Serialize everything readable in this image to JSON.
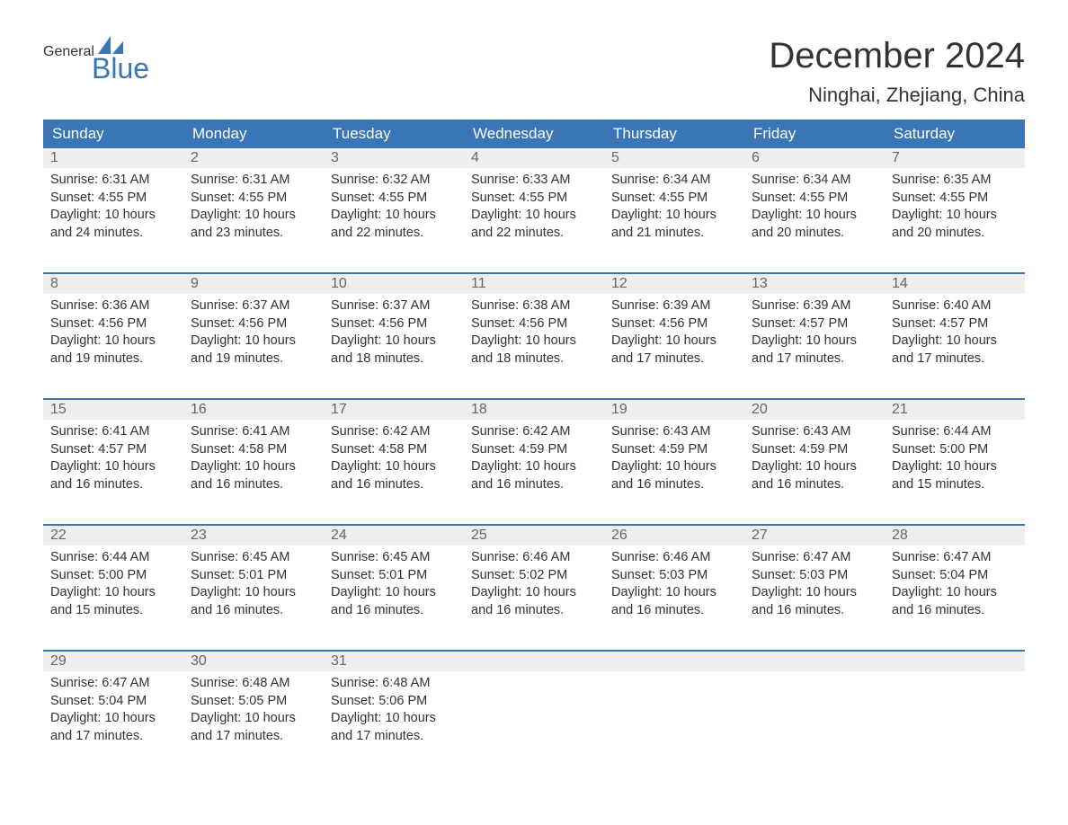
{
  "logo": {
    "text1": "General",
    "text2": "Blue"
  },
  "title": "December 2024",
  "location": "Ninghai, Zhejiang, China",
  "colors": {
    "header_bg": "#3a75b5",
    "header_text": "#ffffff",
    "daynum_bg": "#eeeeee",
    "daynum_text": "#666666",
    "body_text": "#333333",
    "accent": "#3a75b5",
    "page_bg": "#ffffff"
  },
  "typography": {
    "title_fontsize": 40,
    "location_fontsize": 22,
    "header_fontsize": 17,
    "body_fontsize": 14.5,
    "logo_fontsize": 32
  },
  "day_names": [
    "Sunday",
    "Monday",
    "Tuesday",
    "Wednesday",
    "Thursday",
    "Friday",
    "Saturday"
  ],
  "labels": {
    "sunrise": "Sunrise:",
    "sunset": "Sunset:",
    "daylight": "Daylight:"
  },
  "weeks": [
    [
      {
        "n": "1",
        "sunrise": "6:31 AM",
        "sunset": "4:55 PM",
        "daylight": "10 hours and 24 minutes."
      },
      {
        "n": "2",
        "sunrise": "6:31 AM",
        "sunset": "4:55 PM",
        "daylight": "10 hours and 23 minutes."
      },
      {
        "n": "3",
        "sunrise": "6:32 AM",
        "sunset": "4:55 PM",
        "daylight": "10 hours and 22 minutes."
      },
      {
        "n": "4",
        "sunrise": "6:33 AM",
        "sunset": "4:55 PM",
        "daylight": "10 hours and 22 minutes."
      },
      {
        "n": "5",
        "sunrise": "6:34 AM",
        "sunset": "4:55 PM",
        "daylight": "10 hours and 21 minutes."
      },
      {
        "n": "6",
        "sunrise": "6:34 AM",
        "sunset": "4:55 PM",
        "daylight": "10 hours and 20 minutes."
      },
      {
        "n": "7",
        "sunrise": "6:35 AM",
        "sunset": "4:55 PM",
        "daylight": "10 hours and 20 minutes."
      }
    ],
    [
      {
        "n": "8",
        "sunrise": "6:36 AM",
        "sunset": "4:56 PM",
        "daylight": "10 hours and 19 minutes."
      },
      {
        "n": "9",
        "sunrise": "6:37 AM",
        "sunset": "4:56 PM",
        "daylight": "10 hours and 19 minutes."
      },
      {
        "n": "10",
        "sunrise": "6:37 AM",
        "sunset": "4:56 PM",
        "daylight": "10 hours and 18 minutes."
      },
      {
        "n": "11",
        "sunrise": "6:38 AM",
        "sunset": "4:56 PM",
        "daylight": "10 hours and 18 minutes."
      },
      {
        "n": "12",
        "sunrise": "6:39 AM",
        "sunset": "4:56 PM",
        "daylight": "10 hours and 17 minutes."
      },
      {
        "n": "13",
        "sunrise": "6:39 AM",
        "sunset": "4:57 PM",
        "daylight": "10 hours and 17 minutes."
      },
      {
        "n": "14",
        "sunrise": "6:40 AM",
        "sunset": "4:57 PM",
        "daylight": "10 hours and 17 minutes."
      }
    ],
    [
      {
        "n": "15",
        "sunrise": "6:41 AM",
        "sunset": "4:57 PM",
        "daylight": "10 hours and 16 minutes."
      },
      {
        "n": "16",
        "sunrise": "6:41 AM",
        "sunset": "4:58 PM",
        "daylight": "10 hours and 16 minutes."
      },
      {
        "n": "17",
        "sunrise": "6:42 AM",
        "sunset": "4:58 PM",
        "daylight": "10 hours and 16 minutes."
      },
      {
        "n": "18",
        "sunrise": "6:42 AM",
        "sunset": "4:59 PM",
        "daylight": "10 hours and 16 minutes."
      },
      {
        "n": "19",
        "sunrise": "6:43 AM",
        "sunset": "4:59 PM",
        "daylight": "10 hours and 16 minutes."
      },
      {
        "n": "20",
        "sunrise": "6:43 AM",
        "sunset": "4:59 PM",
        "daylight": "10 hours and 16 minutes."
      },
      {
        "n": "21",
        "sunrise": "6:44 AM",
        "sunset": "5:00 PM",
        "daylight": "10 hours and 15 minutes."
      }
    ],
    [
      {
        "n": "22",
        "sunrise": "6:44 AM",
        "sunset": "5:00 PM",
        "daylight": "10 hours and 15 minutes."
      },
      {
        "n": "23",
        "sunrise": "6:45 AM",
        "sunset": "5:01 PM",
        "daylight": "10 hours and 16 minutes."
      },
      {
        "n": "24",
        "sunrise": "6:45 AM",
        "sunset": "5:01 PM",
        "daylight": "10 hours and 16 minutes."
      },
      {
        "n": "25",
        "sunrise": "6:46 AM",
        "sunset": "5:02 PM",
        "daylight": "10 hours and 16 minutes."
      },
      {
        "n": "26",
        "sunrise": "6:46 AM",
        "sunset": "5:03 PM",
        "daylight": "10 hours and 16 minutes."
      },
      {
        "n": "27",
        "sunrise": "6:47 AM",
        "sunset": "5:03 PM",
        "daylight": "10 hours and 16 minutes."
      },
      {
        "n": "28",
        "sunrise": "6:47 AM",
        "sunset": "5:04 PM",
        "daylight": "10 hours and 16 minutes."
      }
    ],
    [
      {
        "n": "29",
        "sunrise": "6:47 AM",
        "sunset": "5:04 PM",
        "daylight": "10 hours and 17 minutes."
      },
      {
        "n": "30",
        "sunrise": "6:48 AM",
        "sunset": "5:05 PM",
        "daylight": "10 hours and 17 minutes."
      },
      {
        "n": "31",
        "sunrise": "6:48 AM",
        "sunset": "5:06 PM",
        "daylight": "10 hours and 17 minutes."
      },
      {
        "empty": true
      },
      {
        "empty": true
      },
      {
        "empty": true
      },
      {
        "empty": true
      }
    ]
  ]
}
